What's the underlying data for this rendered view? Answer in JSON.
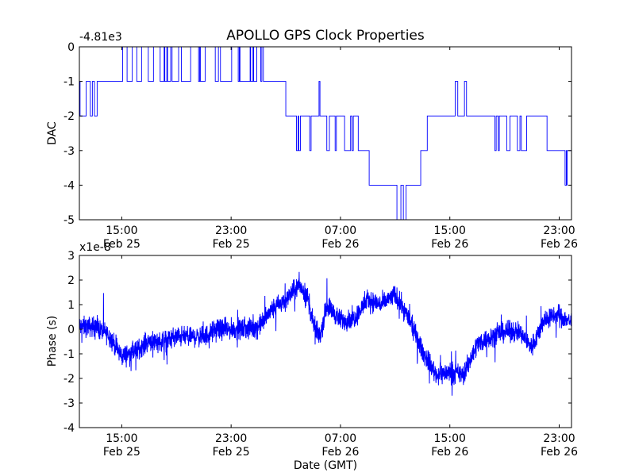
{
  "chart_data": [
    {
      "type": "line",
      "title": "APOLLO GPS Clock Properties",
      "ylabel": "DAC",
      "xlabel": "",
      "y_offset_label": "-4.81e3",
      "y_offset": -4810,
      "ylim": [
        -5,
        0
      ],
      "xlim_hours_from_feb25_0000": [
        11.9,
        47.9
      ],
      "yticks": [
        0,
        -1,
        -2,
        -3,
        -4,
        -5
      ],
      "ytick_labels": [
        "0",
        "-1",
        "-2",
        "-3",
        "-4",
        "-5"
      ],
      "xticks": [
        {
          "hour": 15,
          "time": "15:00",
          "date": "Feb 25"
        },
        {
          "hour": 23,
          "time": "23:00",
          "date": "Feb 25"
        },
        {
          "hour": 31,
          "time": "07:00",
          "date": "Feb 26"
        },
        {
          "hour": 39,
          "time": "15:00",
          "date": "Feb 26"
        },
        {
          "hour": 47,
          "time": "23:00",
          "date": "Feb 26"
        }
      ],
      "line_color": "#0000ff",
      "step_series": [
        [
          11.9,
          -1
        ],
        [
          11.95,
          -2
        ],
        [
          12.4,
          -1
        ],
        [
          12.7,
          -2
        ],
        [
          12.85,
          -1
        ],
        [
          13.0,
          -2
        ],
        [
          13.2,
          -1
        ],
        [
          15.06,
          0
        ],
        [
          15.39,
          -1
        ],
        [
          15.77,
          0
        ],
        [
          16.1,
          -1
        ],
        [
          16.45,
          0
        ],
        [
          16.94,
          -1
        ],
        [
          17.32,
          0
        ],
        [
          17.81,
          -1
        ],
        [
          18.1,
          0
        ],
        [
          18.15,
          -1
        ],
        [
          18.3,
          0
        ],
        [
          18.35,
          -1
        ],
        [
          18.58,
          0
        ],
        [
          18.68,
          -1
        ],
        [
          19.16,
          0
        ],
        [
          19.36,
          -1
        ],
        [
          20.04,
          0
        ],
        [
          20.62,
          -1
        ],
        [
          20.7,
          0
        ],
        [
          20.75,
          -1
        ],
        [
          21.1,
          0
        ],
        [
          21.84,
          -1
        ],
        [
          22.07,
          0
        ],
        [
          22.22,
          -1
        ],
        [
          23.04,
          0
        ],
        [
          23.52,
          -1
        ],
        [
          23.6,
          0
        ],
        [
          23.65,
          -1
        ],
        [
          24.39,
          0
        ],
        [
          24.43,
          -1
        ],
        [
          24.6,
          0
        ],
        [
          24.65,
          -1
        ],
        [
          24.88,
          0
        ],
        [
          25.17,
          -1
        ],
        [
          25.25,
          0
        ],
        [
          25.36,
          -1
        ],
        [
          27.0,
          -2
        ],
        [
          27.78,
          -3
        ],
        [
          27.9,
          -2
        ],
        [
          27.95,
          -3
        ],
        [
          28.07,
          -2
        ],
        [
          28.75,
          -3
        ],
        [
          28.85,
          -2
        ],
        [
          29.43,
          -1
        ],
        [
          29.5,
          -2
        ],
        [
          30.0,
          -3
        ],
        [
          30.19,
          -2
        ],
        [
          30.61,
          -3
        ],
        [
          30.7,
          -2
        ],
        [
          31.3,
          -3
        ],
        [
          31.74,
          -2
        ],
        [
          31.84,
          -3
        ],
        [
          31.94,
          -2
        ],
        [
          32.3,
          -3
        ],
        [
          33.1,
          -4
        ],
        [
          35.13,
          -5
        ],
        [
          35.42,
          -4
        ],
        [
          35.6,
          -5
        ],
        [
          35.8,
          -4
        ],
        [
          36.87,
          -3
        ],
        [
          37.35,
          -2
        ],
        [
          39.39,
          -1
        ],
        [
          39.58,
          -2
        ],
        [
          40.07,
          -1
        ],
        [
          40.22,
          -2
        ],
        [
          42.29,
          -3
        ],
        [
          42.39,
          -2
        ],
        [
          42.54,
          -3
        ],
        [
          42.62,
          -2
        ],
        [
          43.16,
          -3
        ],
        [
          43.4,
          -2
        ],
        [
          43.94,
          -3
        ],
        [
          44.13,
          -2
        ],
        [
          44.23,
          -3
        ],
        [
          44.62,
          -2
        ],
        [
          46.11,
          -3
        ],
        [
          47.43,
          -4
        ],
        [
          47.52,
          -3
        ],
        [
          47.55,
          -4
        ],
        [
          47.58,
          -3
        ]
      ]
    },
    {
      "type": "line",
      "title": "",
      "ylabel": "Phase (s)",
      "xlabel": "Date (GMT)",
      "y_offset_label": "x1e-8",
      "y_scale": 1e-08,
      "ylim": [
        -4,
        3
      ],
      "xlim_hours_from_feb25_0000": [
        11.9,
        47.9
      ],
      "yticks": [
        3,
        2,
        1,
        0,
        -1,
        -2,
        -3,
        -4
      ],
      "ytick_labels": [
        "3",
        "2",
        "1",
        "0",
        "-1",
        "-2",
        "-3",
        "-4"
      ],
      "xticks": [
        {
          "hour": 15,
          "time": "15:00",
          "date": "Feb 25"
        },
        {
          "hour": 23,
          "time": "23:00",
          "date": "Feb 25"
        },
        {
          "hour": 31,
          "time": "07:00",
          "date": "Feb 26"
        },
        {
          "hour": 39,
          "time": "15:00",
          "date": "Feb 26"
        },
        {
          "hour": 47,
          "time": "23:00",
          "date": "Feb 26"
        }
      ],
      "line_color": "#0000ff",
      "noise_amplitude": 0.45,
      "trend": [
        [
          11.9,
          0.1
        ],
        [
          13,
          0.1
        ],
        [
          14,
          -0.2
        ],
        [
          15,
          -1.1
        ],
        [
          16,
          -0.9
        ],
        [
          17,
          -0.45
        ],
        [
          18,
          -0.5
        ],
        [
          19,
          -0.3
        ],
        [
          20,
          -0.3
        ],
        [
          21,
          -0.3
        ],
        [
          22,
          0
        ],
        [
          23,
          0
        ],
        [
          24,
          0
        ],
        [
          25,
          0.1
        ],
        [
          26,
          0.8
        ],
        [
          27,
          1.2
        ],
        [
          28,
          1.8
        ],
        [
          28.6,
          1.3
        ],
        [
          29,
          0.2
        ],
        [
          29.5,
          -0.3
        ],
        [
          30,
          1.0
        ],
        [
          31,
          0.35
        ],
        [
          32,
          0.45
        ],
        [
          33,
          1.2
        ],
        [
          34,
          1.0
        ],
        [
          35,
          1.4
        ],
        [
          36,
          0.45
        ],
        [
          37,
          -0.9
        ],
        [
          38,
          -1.85
        ],
        [
          39,
          -1.75
        ],
        [
          40,
          -1.85
        ],
        [
          41,
          -0.6
        ],
        [
          42,
          -0.3
        ],
        [
          43,
          -0.1
        ],
        [
          44,
          -0.1
        ],
        [
          45,
          -0.7
        ],
        [
          46,
          0.45
        ],
        [
          47,
          0.55
        ],
        [
          47.9,
          0.3
        ]
      ]
    }
  ]
}
